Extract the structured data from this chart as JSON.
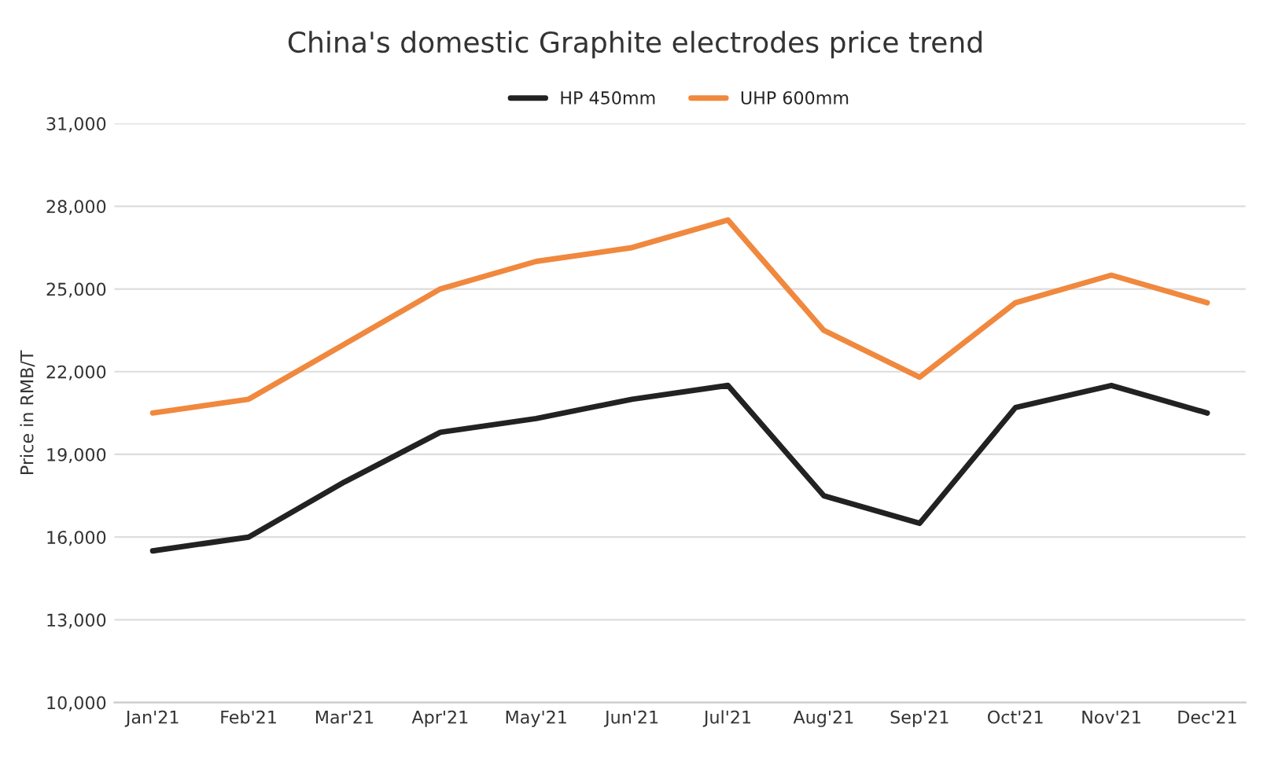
{
  "chart_data": {
    "type": "line",
    "title": "China's domestic Graphite electrodes price trend",
    "ylabel": "Price in RMB/T",
    "categories": [
      "Jan'21",
      "Feb'21",
      "Mar'21",
      "Apr'21",
      "May'21",
      "Jun'21",
      "Jul'21",
      "Aug'21",
      "Sep'21",
      "Oct'21",
      "Nov'21",
      "Dec'21"
    ],
    "series": [
      {
        "name": "HP 450mm",
        "color": "#222222",
        "values": [
          15500,
          16000,
          18000,
          19800,
          20300,
          21000,
          21500,
          17500,
          16500,
          20700,
          21500,
          20500
        ]
      },
      {
        "name": "UHP 600mm",
        "color": "#f0883e",
        "values": [
          20500,
          21000,
          23000,
          25000,
          26000,
          26500,
          27500,
          23500,
          21800,
          24500,
          25500,
          24500
        ]
      }
    ],
    "ylim": [
      10000,
      31000
    ],
    "yticks": [
      {
        "value": 10000,
        "label": "10,000"
      },
      {
        "value": 13000,
        "label": "13,000"
      },
      {
        "value": 16000,
        "label": "16,000"
      },
      {
        "value": 19000,
        "label": "19,000"
      },
      {
        "value": 22000,
        "label": "22,000"
      },
      {
        "value": 25000,
        "label": "25,000"
      },
      {
        "value": 28000,
        "label": "28,000"
      },
      {
        "value": 31000,
        "label": "31,000"
      }
    ],
    "grid": "y",
    "legend": "top",
    "marker": "none",
    "line_style": "solid"
  }
}
